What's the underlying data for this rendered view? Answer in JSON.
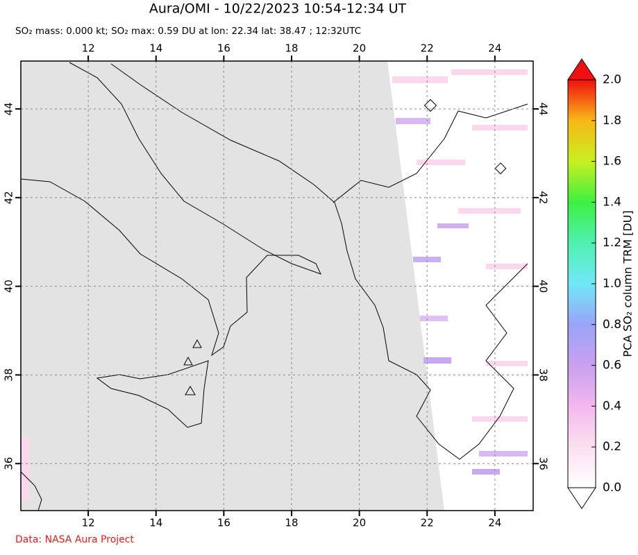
{
  "title": "Aura/OMI - 10/22/2023 10:54-12:34 UT",
  "subtitle": "SO₂ mass: 0.000 kt; SO₂ max: 0.59 DU at lon: 22.34 lat: 38.47 ; 12:32UTC",
  "map": {
    "lonlim": [
      10.01,
      25.13
    ],
    "latlim": [
      34.94,
      45.08
    ],
    "lon_ticks": [
      12,
      14,
      16,
      18,
      20,
      22,
      24
    ],
    "lat_ticks": [
      36,
      38,
      40,
      42,
      44
    ]
  },
  "colorbar": {
    "label": "PCA SO₂ column TRM [DU]",
    "clim": [
      0,
      2
    ],
    "ticks": [
      {
        "value": 0,
        "label": "0.0"
      },
      {
        "value": 0.2,
        "label": "0.2"
      },
      {
        "value": 0.4,
        "label": "0.4"
      },
      {
        "value": 0.6,
        "label": "0.6"
      },
      {
        "value": 0.8,
        "label": "0.8"
      },
      {
        "value": 1,
        "label": "1.0"
      },
      {
        "value": 1.2,
        "label": "1.2"
      },
      {
        "value": 1.4,
        "label": "1.4"
      },
      {
        "value": 1.6,
        "label": "1.6"
      },
      {
        "value": 1.8,
        "label": "1.8"
      },
      {
        "value": 2,
        "label": "2.0"
      }
    ]
  },
  "footer": "Data: NASA Aura Project"
}
